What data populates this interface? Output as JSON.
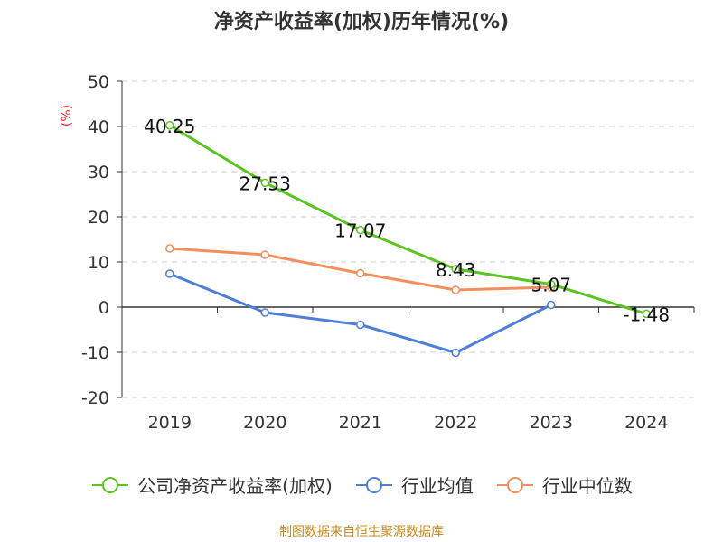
{
  "chart_data": {
    "type": "line",
    "title": "净资产收益率(加权)历年情况(%)",
    "unit_label": "(%)",
    "categories": [
      "2019",
      "2020",
      "2021",
      "2022",
      "2023",
      "2024"
    ],
    "ylim": [
      -20,
      50
    ],
    "yticks": [
      "50",
      "40",
      "30",
      "20",
      "10",
      "0",
      "-10",
      "-20"
    ],
    "grid": true,
    "legend_position": "bottom",
    "series": [
      {
        "name": "公司净资产收益率(加权)",
        "color": "#5cc420",
        "values": [
          40.25,
          27.53,
          17.07,
          8.43,
          5.07,
          -1.48
        ],
        "labels": [
          "40.25",
          "27.53",
          "17.07",
          "8.43",
          "5.07",
          "-1.48"
        ]
      },
      {
        "name": "行业均值",
        "color": "#4e7fd8",
        "values": [
          7.4,
          -1.2,
          -3.9,
          -10.1,
          0.5,
          null
        ]
      },
      {
        "name": "行业中位数",
        "color": "#f28f5c",
        "values": [
          13.0,
          11.6,
          7.5,
          3.8,
          4.4,
          null
        ]
      }
    ]
  },
  "source": "制图数据来自恒生聚源数据库"
}
